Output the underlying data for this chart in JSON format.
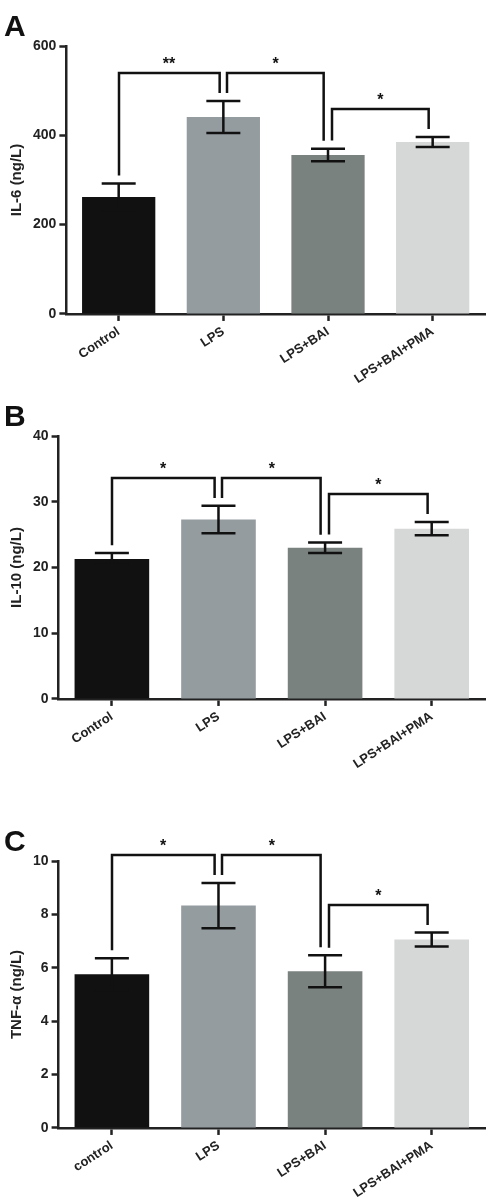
{
  "chart_data": [
    {
      "type": "bar",
      "title": "A",
      "ylabel": "IL-6 (ng/L)",
      "categories": [
        "Control",
        "LPS",
        "LPS+BAI",
        "LPS+BAI+PMA"
      ],
      "values": [
        262,
        441,
        356,
        385
      ],
      "errors": [
        30,
        36,
        14,
        11
      ],
      "colors": [
        "#111111",
        "#959ca0",
        "#7a827f",
        "#d5d8d6"
      ],
      "ylim": [
        0,
        600
      ],
      "yticks": [
        0,
        200,
        400,
        600
      ],
      "annotations": [
        "**",
        "*",
        "*"
      ]
    },
    {
      "type": "bar",
      "title": "B",
      "ylabel": "IL-10 (ng/L)",
      "categories": [
        "Control",
        "LPS",
        "LPS+BAI",
        "LPS+BAI+PMA"
      ],
      "values": [
        21.3,
        27.3,
        23.0,
        25.9
      ],
      "errors": [
        0.9,
        2.1,
        0.8,
        1.0
      ],
      "colors": [
        "#111111",
        "#959ca0",
        "#7a827f",
        "#d5d8d6"
      ],
      "ylim": [
        0,
        40
      ],
      "yticks": [
        0,
        10,
        20,
        30,
        40
      ],
      "annotations": [
        "*",
        "*",
        "*"
      ]
    },
    {
      "type": "bar",
      "title": "C",
      "ylabel": "TNF-α (ng/L)",
      "categories": [
        "control",
        "LPS",
        "LPS+BAI",
        "LPS+BAI+PMA"
      ],
      "values": [
        5.76,
        8.33,
        5.87,
        7.06
      ],
      "errors": [
        0.6,
        0.85,
        0.6,
        0.26
      ],
      "colors": [
        "#111111",
        "#959ca0",
        "#7a827f",
        "#d5d8d6"
      ],
      "ylim": [
        0,
        10
      ],
      "yticks": [
        0,
        2,
        4,
        6,
        8,
        10
      ],
      "annotations": [
        "*",
        "*",
        "*"
      ]
    }
  ]
}
